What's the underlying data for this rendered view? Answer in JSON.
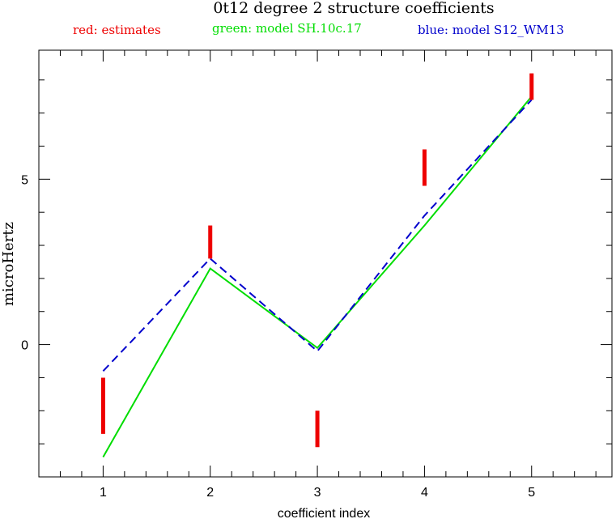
{
  "chart_data": {
    "type": "line",
    "title": "0t12 degree 2 structure coefficients",
    "xlabel": "coefficient index",
    "ylabel": "microHertz",
    "xlim": [
      0.4,
      5.75
    ],
    "ylim": [
      -4.0,
      8.9
    ],
    "x_ticks": [
      1,
      2,
      3,
      4,
      5
    ],
    "x_tick_labels": [
      "1",
      "2",
      "3",
      "4",
      "5"
    ],
    "y_ticks": [
      0,
      5
    ],
    "y_tick_labels": [
      "0",
      "5"
    ],
    "legend": [
      {
        "text": "red: estimates",
        "color": "#ee0000"
      },
      {
        "text": "green: model SH.10c.17",
        "color": "#00dd00"
      },
      {
        "text": "blue: model S12_WM13",
        "color": "#0000cc"
      }
    ],
    "estimates": {
      "name": "estimates",
      "color": "#ee0000",
      "x": [
        1,
        2,
        3,
        4,
        5
      ],
      "low": [
        -2.7,
        2.6,
        -3.1,
        4.8,
        7.4
      ],
      "high": [
        -1.0,
        3.6,
        -2.0,
        5.9,
        8.2
      ]
    },
    "series": [
      {
        "name": "model SH.10c.17",
        "color": "#00dd00",
        "dash": false,
        "x": [
          1,
          2,
          3,
          4,
          5
        ],
        "values": [
          -3.4,
          2.3,
          -0.1,
          3.6,
          7.5
        ]
      },
      {
        "name": "model S12_WM13",
        "color": "#0000cc",
        "dash": true,
        "x": [
          1,
          2,
          3,
          4,
          5
        ],
        "values": [
          -0.8,
          2.6,
          -0.2,
          3.9,
          7.4
        ]
      }
    ]
  }
}
